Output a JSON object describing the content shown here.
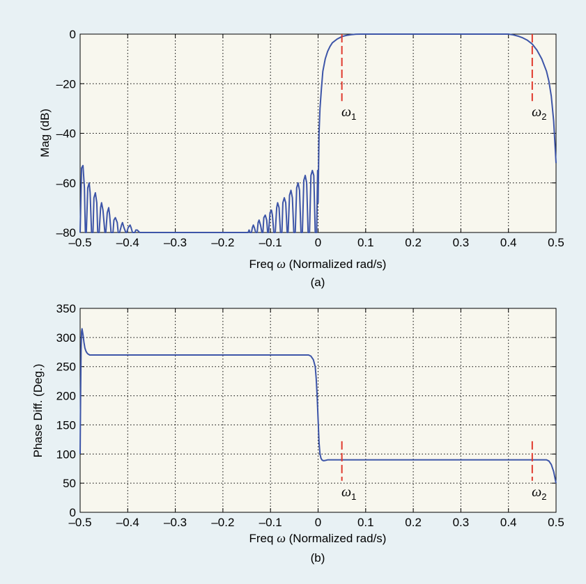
{
  "figure": {
    "background": "#e8f1f4",
    "plot_background": "#f8f7ee",
    "curve_color": "#3d55a8",
    "marker_color": "#e03a2e"
  },
  "chart_data": [
    {
      "type": "line",
      "caption": "(a)",
      "xlabel_text": "Freq ",
      "xlabel_symbol": "ω",
      "xlabel_unit": " (Normalized rad/s)",
      "ylabel": "Mag (dB)",
      "xlim": [
        -0.5,
        0.5
      ],
      "ylim": [
        -80,
        0
      ],
      "grid": true,
      "xticks": [
        -0.5,
        -0.4,
        -0.3,
        -0.2,
        -0.1,
        0,
        0.1,
        0.2,
        0.3,
        0.4,
        0.5
      ],
      "xtick_labels": [
        "–0.5",
        "–0.4",
        "–0.3",
        "–0.2",
        "–0.1",
        "0",
        "0.1",
        "0.2",
        "0.3",
        "0.4",
        "0.5"
      ],
      "yticks": [
        0,
        -20,
        -40,
        -60,
        -80
      ],
      "ytick_labels": [
        "0",
        "–20",
        "–40",
        "–60",
        "–80"
      ],
      "series": [
        {
          "x": [
            -0.5,
            -0.497,
            -0.494,
            -0.491,
            -0.489,
            -0.487,
            -0.484,
            -0.481,
            -0.479,
            -0.476,
            -0.473,
            -0.471,
            -0.468,
            -0.465,
            -0.463,
            -0.46,
            -0.457,
            -0.455,
            -0.452,
            -0.448,
            -0.446,
            -0.443,
            -0.44,
            -0.438,
            -0.435,
            -0.431,
            -0.429,
            -0.426,
            -0.422,
            -0.42,
            -0.417,
            -0.413,
            -0.411,
            -0.408,
            -0.404,
            -0.402,
            -0.399,
            -0.395,
            -0.393,
            -0.39,
            -0.385,
            -0.383,
            -0.38,
            -0.375,
            -0.373,
            -0.37,
            -0.36,
            -0.34,
            -0.3,
            -0.2,
            -0.15,
            -0.147,
            -0.145,
            -0.143,
            -0.14,
            -0.138,
            -0.136,
            -0.134,
            -0.131,
            -0.128,
            -0.126,
            -0.124,
            -0.121,
            -0.118,
            -0.116,
            -0.114,
            -0.111,
            -0.108,
            -0.106,
            -0.104,
            -0.101,
            -0.098,
            -0.096,
            -0.093,
            -0.09,
            -0.087,
            -0.085,
            -0.082,
            -0.079,
            -0.076,
            -0.074,
            -0.071,
            -0.068,
            -0.065,
            -0.063,
            -0.06,
            -0.057,
            -0.054,
            -0.051,
            -0.048,
            -0.045,
            -0.042,
            -0.039,
            -0.036,
            -0.033,
            -0.03,
            -0.027,
            -0.024,
            -0.021,
            -0.018,
            -0.015,
            -0.012,
            -0.009,
            -0.006,
            -0.003,
            -0.001,
            0,
            0.002,
            0.004,
            0.007,
            0.01,
            0.015,
            0.02,
            0.025,
            0.03,
            0.04,
            0.05,
            0.06,
            0.07,
            0.08,
            0.09,
            0.1,
            0.2,
            0.3,
            0.4,
            0.41,
            0.42,
            0.43,
            0.44,
            0.45,
            0.46,
            0.47,
            0.48,
            0.485,
            0.49,
            0.495,
            0.5
          ],
          "y": [
            -80,
            -54,
            -53,
            -62,
            -80,
            -80,
            -62,
            -60,
            -64,
            -80,
            -80,
            -66,
            -64,
            -68,
            -80,
            -80,
            -70,
            -68,
            -71,
            -80,
            -80,
            -72,
            -70,
            -73,
            -80,
            -80,
            -75,
            -74,
            -76,
            -80,
            -80,
            -77,
            -76,
            -78,
            -80,
            -80,
            -78,
            -77,
            -78,
            -80,
            -80,
            -79,
            -79,
            -80,
            -80,
            -80,
            -80,
            -80,
            -80,
            -80,
            -80,
            -80,
            -79,
            -80,
            -80,
            -78,
            -77,
            -78,
            -80,
            -80,
            -76,
            -75,
            -77,
            -80,
            -80,
            -74,
            -73,
            -75,
            -80,
            -80,
            -72,
            -71,
            -73,
            -80,
            -80,
            -70,
            -68,
            -70,
            -80,
            -80,
            -68,
            -66,
            -68,
            -80,
            -80,
            -65,
            -63,
            -66,
            -80,
            -80,
            -62,
            -60,
            -63,
            -80,
            -80,
            -59,
            -57,
            -60,
            -80,
            -80,
            -57,
            -55,
            -57,
            -80,
            -80,
            -55,
            -68,
            -40,
            -30,
            -22,
            -15,
            -10,
            -7,
            -5,
            -3.5,
            -2,
            -1,
            -0.5,
            -0.2,
            -0.05,
            -0.01,
            0,
            0,
            0,
            0,
            -0.3,
            -0.8,
            -1.5,
            -2.5,
            -4,
            -6.5,
            -10,
            -15,
            -19,
            -25,
            -35,
            -52
          ]
        }
      ],
      "markers": [
        {
          "x": 0.05,
          "y_from": 0,
          "y_to": -27,
          "label": "ω",
          "sub": "1"
        },
        {
          "x": 0.45,
          "y_from": 0,
          "y_to": -27,
          "label": "ω",
          "sub": "2"
        }
      ]
    },
    {
      "type": "line",
      "caption": "(b)",
      "xlabel_text": "Freq ",
      "xlabel_symbol": "ω",
      "xlabel_unit": " (Normalized rad/s)",
      "ylabel": "Phase Diff. (Deg.)",
      "xlim": [
        -0.5,
        0.5
      ],
      "ylim": [
        0,
        350
      ],
      "grid": true,
      "xticks": [
        -0.5,
        -0.4,
        -0.3,
        -0.2,
        -0.1,
        0,
        0.1,
        0.2,
        0.3,
        0.4,
        0.5
      ],
      "xtick_labels": [
        "–0.5",
        "–0.4",
        "–0.3",
        "–0.2",
        "–0.1",
        "0",
        "0.1",
        "0.2",
        "0.3",
        "0.4",
        "0.5"
      ],
      "yticks": [
        0,
        50,
        100,
        150,
        200,
        250,
        300,
        350
      ],
      "ytick_labels": [
        "0",
        "50",
        "100",
        "150",
        "200",
        "250",
        "300",
        "350"
      ],
      "series": [
        {
          "x": [
            -0.5,
            -0.499,
            -0.498,
            -0.497,
            -0.496,
            -0.494,
            -0.492,
            -0.49,
            -0.488,
            -0.486,
            -0.484,
            -0.482,
            -0.48,
            -0.47,
            -0.4,
            -0.2,
            -0.02,
            -0.015,
            -0.01,
            -0.006,
            -0.004,
            -0.002,
            0,
            0.002,
            0.004,
            0.006,
            0.008,
            0.01,
            0.012,
            0.015,
            0.02,
            0.025,
            0.03,
            0.04,
            0.2,
            0.4,
            0.47,
            0.48,
            0.485,
            0.49,
            0.495,
            0.5
          ],
          "y": [
            100,
            200,
            280,
            310,
            315,
            305,
            292,
            282,
            277,
            274,
            272,
            271,
            270,
            270,
            270,
            270,
            270,
            268,
            262,
            250,
            230,
            200,
            160,
            120,
            100,
            93,
            90,
            89,
            88.5,
            89,
            90,
            90,
            90,
            90,
            90,
            90,
            90,
            90,
            88,
            82,
            70,
            50
          ]
        }
      ],
      "markers": [
        {
          "x": 0.05,
          "y_from": 122,
          "y_to": 54,
          "label": "ω",
          "sub": "1"
        },
        {
          "x": 0.45,
          "y_from": 122,
          "y_to": 54,
          "label": "ω",
          "sub": "2"
        }
      ]
    }
  ]
}
